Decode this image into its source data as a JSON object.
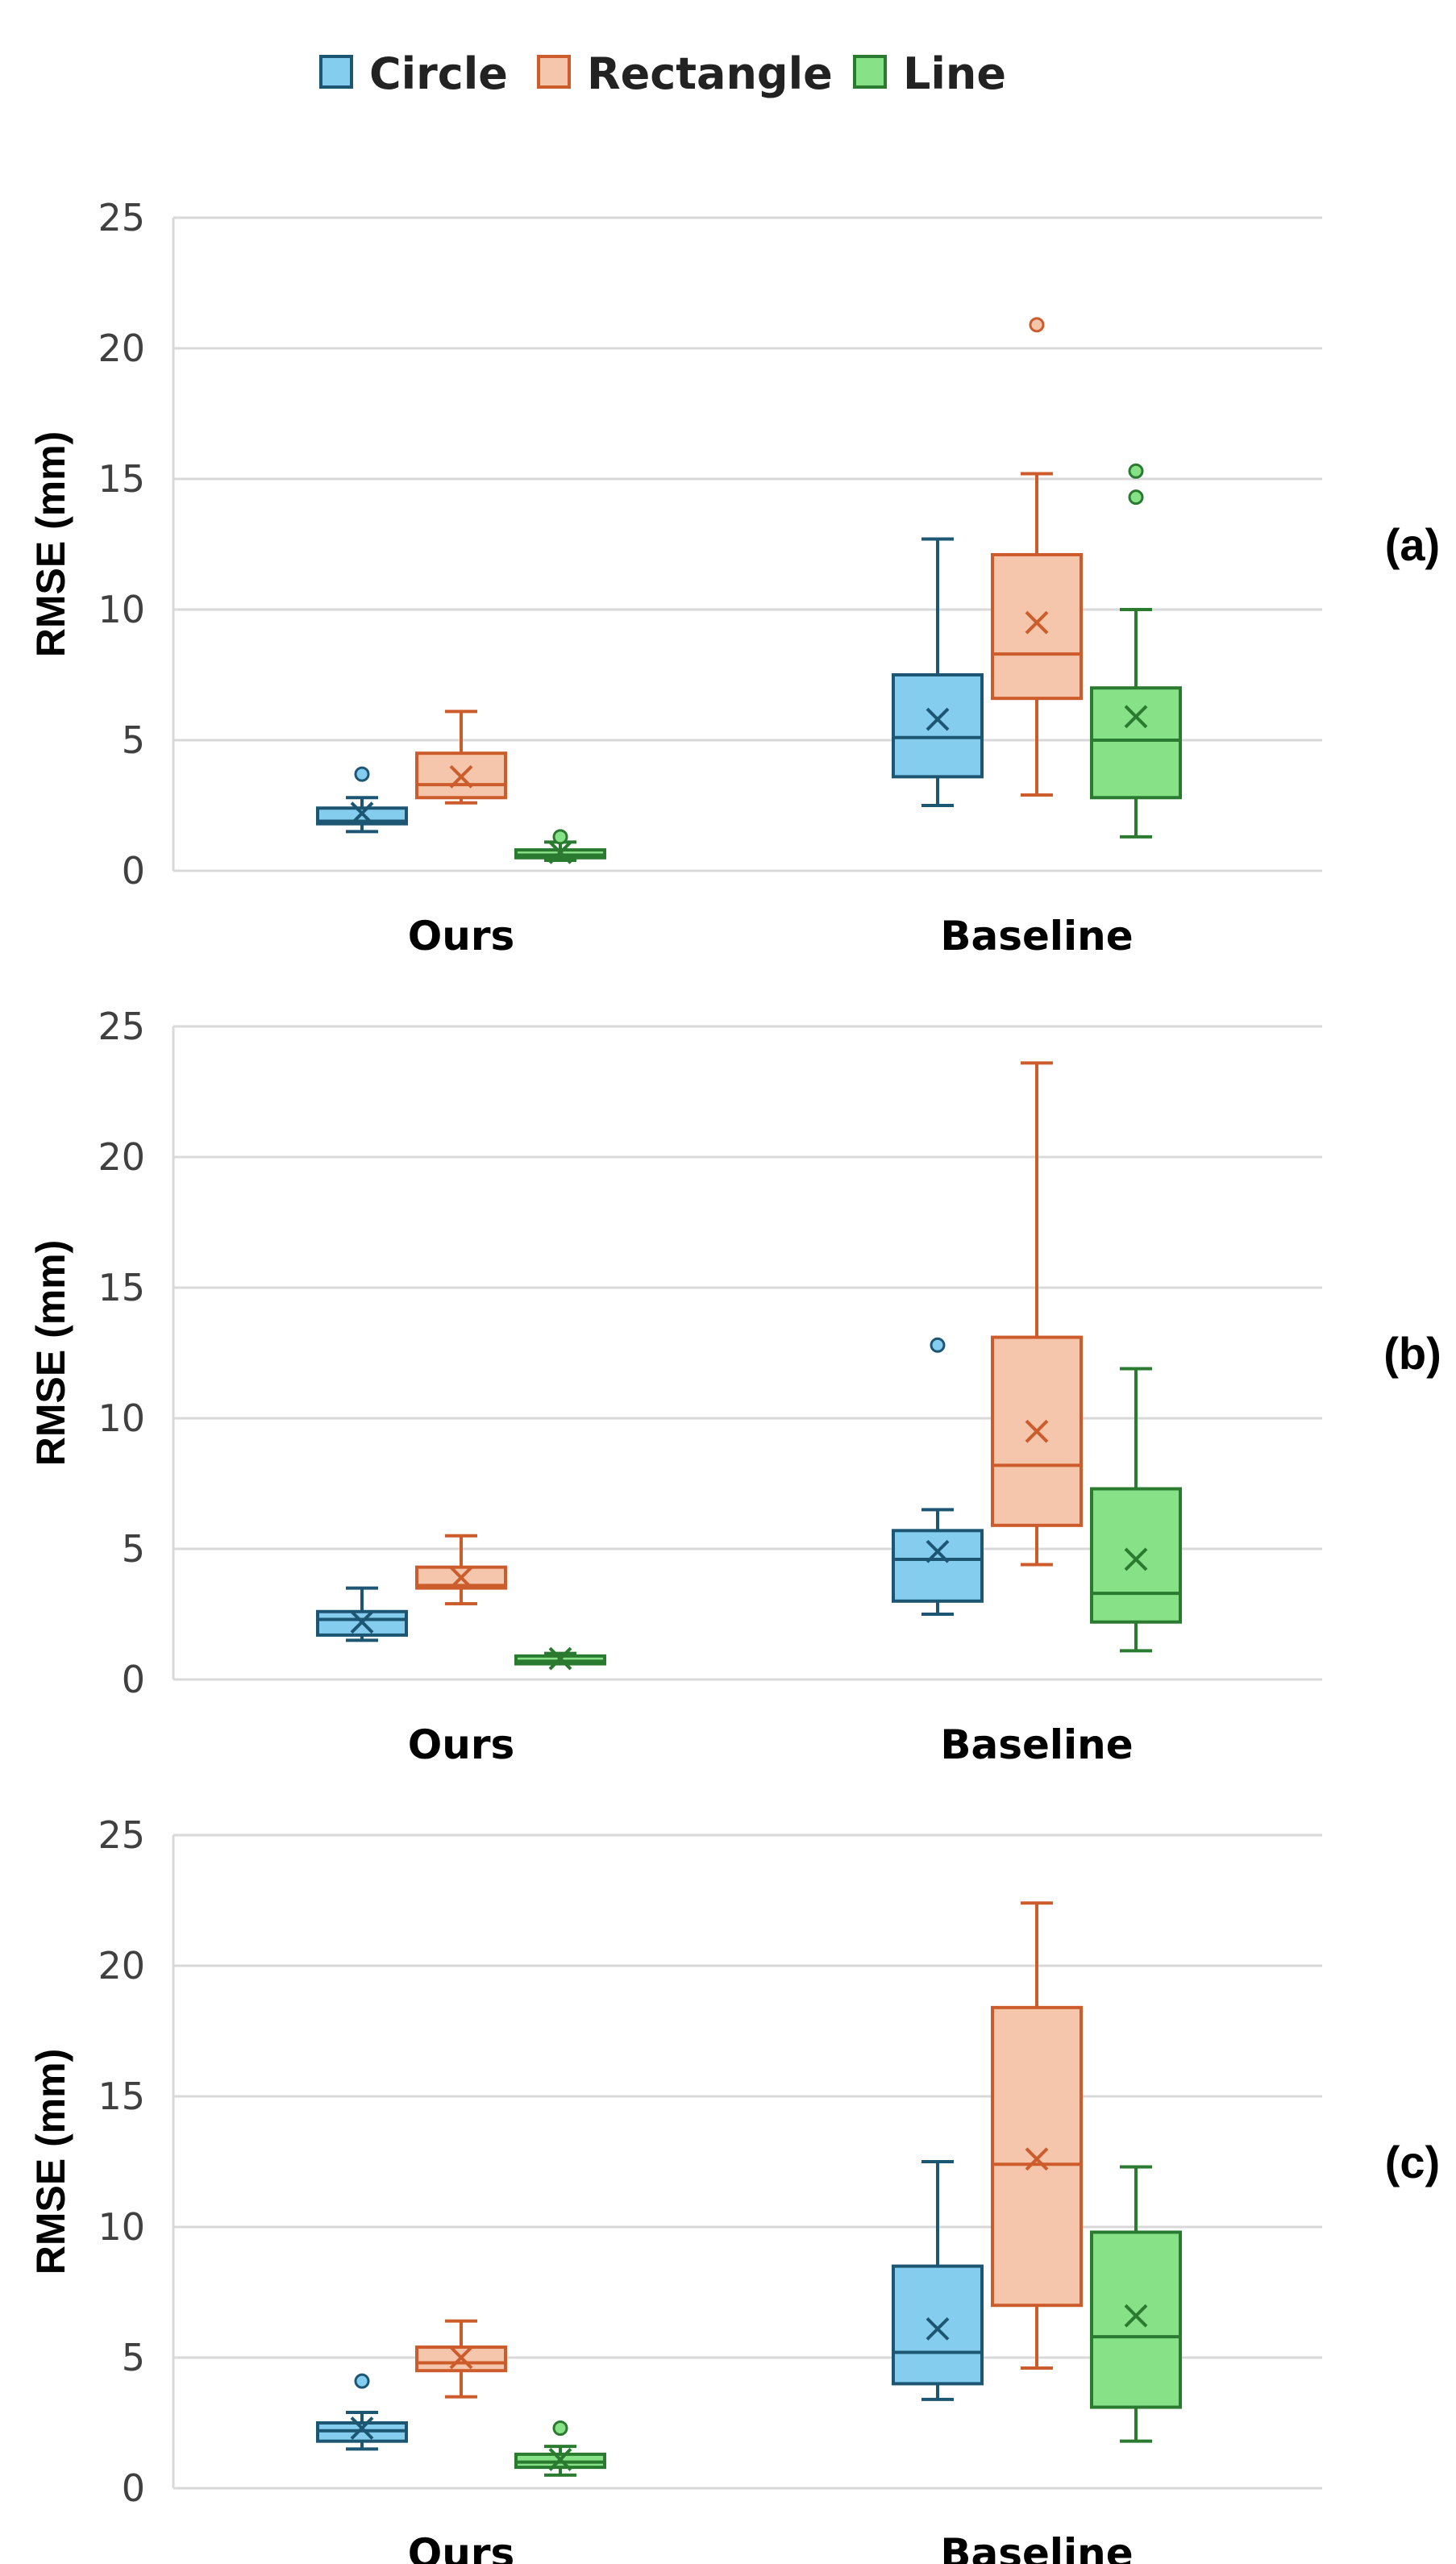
{
  "colors": {
    "Circle": {
      "fill": "#84cdee",
      "stroke": "#1d5673"
    },
    "Rectangle": {
      "fill": "#f5c6ab",
      "stroke": "#cc5c2b"
    },
    "Line": {
      "fill": "#86e187",
      "stroke": "#2a7a2f"
    },
    "grid": "#d9d9d9"
  },
  "legend": [
    "Circle",
    "Rectangle",
    "Line"
  ],
  "chart_data": [
    {
      "type": "box",
      "panel_label": "(a)",
      "ylabel": "RMSE (mm)",
      "ylim": [
        0,
        25
      ],
      "yticks": [
        0,
        5,
        10,
        15,
        20,
        25
      ],
      "categories": [
        "Ours",
        "Baseline"
      ],
      "grid": true,
      "series": [
        {
          "name": "Circle",
          "boxes": [
            {
              "min": 1.5,
              "q1": 1.8,
              "median": 1.9,
              "q3": 2.4,
              "max": 2.8,
              "mean": 2.2,
              "outliers": [
                3.7
              ]
            },
            {
              "min": 2.5,
              "q1": 3.6,
              "median": 5.1,
              "q3": 7.5,
              "max": 12.7,
              "mean": 5.8,
              "outliers": []
            }
          ]
        },
        {
          "name": "Rectangle",
          "boxes": [
            {
              "min": 2.6,
              "q1": 2.8,
              "median": 3.3,
              "q3": 4.5,
              "max": 6.1,
              "mean": 3.6,
              "outliers": []
            },
            {
              "min": 2.9,
              "q1": 6.6,
              "median": 8.3,
              "q3": 12.1,
              "max": 15.2,
              "mean": 9.5,
              "outliers": [
                20.9
              ]
            }
          ]
        },
        {
          "name": "Line",
          "boxes": [
            {
              "min": 0.4,
              "q1": 0.5,
              "median": 0.6,
              "q3": 0.8,
              "max": 1.1,
              "mean": 0.7,
              "outliers": [
                1.3
              ]
            },
            {
              "min": 1.3,
              "q1": 2.8,
              "median": 5.0,
              "q3": 7.0,
              "max": 10.0,
              "mean": 5.9,
              "outliers": [
                14.3,
                15.3
              ]
            }
          ]
        }
      ]
    },
    {
      "type": "box",
      "panel_label": "(b)",
      "ylabel": "RMSE (mm)",
      "ylim": [
        0,
        25
      ],
      "yticks": [
        0,
        5,
        10,
        15,
        20,
        25
      ],
      "categories": [
        "Ours",
        "Baseline"
      ],
      "grid": true,
      "series": [
        {
          "name": "Circle",
          "boxes": [
            {
              "min": 1.5,
              "q1": 1.7,
              "median": 2.3,
              "q3": 2.6,
              "max": 3.5,
              "mean": 2.2,
              "outliers": []
            },
            {
              "min": 2.5,
              "q1": 3.0,
              "median": 4.6,
              "q3": 5.7,
              "max": 6.5,
              "mean": 4.9,
              "outliers": [
                12.8
              ]
            }
          ]
        },
        {
          "name": "Rectangle",
          "boxes": [
            {
              "min": 2.9,
              "q1": 3.5,
              "median": 3.6,
              "q3": 4.3,
              "max": 5.5,
              "mean": 3.9,
              "outliers": []
            },
            {
              "min": 4.4,
              "q1": 5.9,
              "median": 8.2,
              "q3": 13.1,
              "max": 23.6,
              "mean": 9.5,
              "outliers": []
            }
          ]
        },
        {
          "name": "Line",
          "boxes": [
            {
              "min": 0.6,
              "q1": 0.6,
              "median": 0.7,
              "q3": 0.9,
              "max": 1.0,
              "mean": 0.8,
              "outliers": []
            },
            {
              "min": 1.1,
              "q1": 2.2,
              "median": 3.3,
              "q3": 7.3,
              "max": 11.9,
              "mean": 4.6,
              "outliers": []
            }
          ]
        }
      ]
    },
    {
      "type": "box",
      "panel_label": "(c)",
      "ylabel": "RMSE (mm)",
      "ylim": [
        0,
        25
      ],
      "yticks": [
        0,
        5,
        10,
        15,
        20,
        25
      ],
      "categories": [
        "Ours",
        "Baseline"
      ],
      "grid": true,
      "series": [
        {
          "name": "Circle",
          "boxes": [
            {
              "min": 1.5,
              "q1": 1.8,
              "median": 2.2,
              "q3": 2.5,
              "max": 2.9,
              "mean": 2.3,
              "outliers": [
                4.1
              ]
            },
            {
              "min": 3.4,
              "q1": 4.0,
              "median": 5.2,
              "q3": 8.5,
              "max": 12.5,
              "mean": 6.1,
              "outliers": []
            }
          ]
        },
        {
          "name": "Rectangle",
          "boxes": [
            {
              "min": 3.5,
              "q1": 4.5,
              "median": 4.8,
              "q3": 5.4,
              "max": 6.4,
              "mean": 5.0,
              "outliers": []
            },
            {
              "min": 4.6,
              "q1": 7.0,
              "median": 12.4,
              "q3": 18.4,
              "max": 22.4,
              "mean": 12.6,
              "outliers": []
            }
          ]
        },
        {
          "name": "Line",
          "boxes": [
            {
              "min": 0.5,
              "q1": 0.8,
              "median": 1.0,
              "q3": 1.3,
              "max": 1.6,
              "mean": 1.1,
              "outliers": [
                2.3
              ]
            },
            {
              "min": 1.8,
              "q1": 3.1,
              "median": 5.8,
              "q3": 9.8,
              "max": 12.3,
              "mean": 6.6,
              "outliers": []
            }
          ]
        }
      ]
    }
  ]
}
